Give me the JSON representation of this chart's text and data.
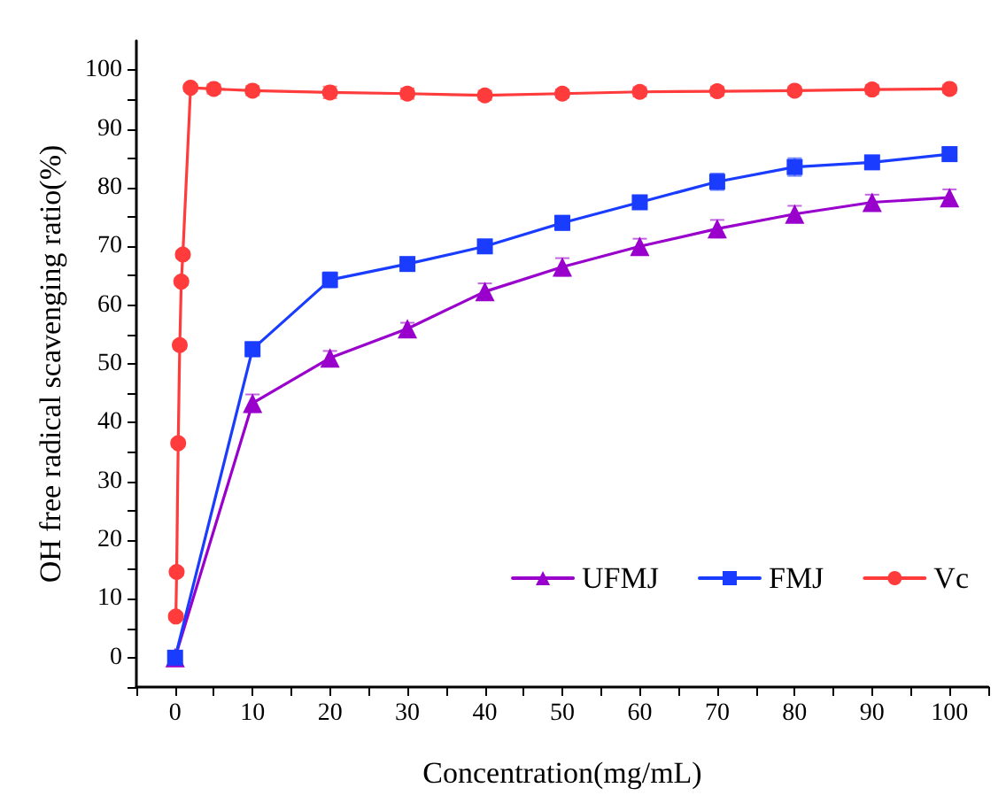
{
  "chart_data": {
    "type": "line",
    "xlabel": "Concentration(mg/mL)",
    "ylabel": "OH free radical scavenging ratio(%)",
    "xlim": [
      -5,
      105
    ],
    "ylim": [
      -5,
      105
    ],
    "xticks": [
      {
        "value": -5,
        "label": null
      },
      0,
      {
        "value": 5,
        "label": null
      },
      10,
      {
        "value": 15,
        "label": null
      },
      20,
      {
        "value": 25,
        "label": null
      },
      30,
      {
        "value": 35,
        "label": null
      },
      40,
      {
        "value": 45,
        "label": null
      },
      50,
      {
        "value": 55,
        "label": null
      },
      60,
      {
        "value": 65,
        "label": null
      },
      70,
      {
        "value": 75,
        "label": null
      },
      80,
      {
        "value": 85,
        "label": null
      },
      90,
      {
        "value": 95,
        "label": null
      },
      100,
      {
        "value": 105,
        "label": null
      }
    ],
    "yticks": [
      {
        "value": -5,
        "label": null
      },
      0,
      {
        "value": 5,
        "label": null
      },
      10,
      {
        "value": 15,
        "label": null
      },
      20,
      {
        "value": 25,
        "label": null
      },
      30,
      {
        "value": 35,
        "label": null
      },
      40,
      {
        "value": 45,
        "label": null
      },
      50,
      {
        "value": 55,
        "label": null
      },
      60,
      {
        "value": 65,
        "label": null
      },
      70,
      {
        "value": 75,
        "label": null
      },
      80,
      {
        "value": 85,
        "label": null
      },
      90,
      {
        "value": 95,
        "label": null
      },
      100
    ],
    "grid": false,
    "legend": "bottom right",
    "line_style": "solid",
    "series": [
      {
        "name": "UFMJ",
        "color": "#9900cc",
        "marker": "triangle",
        "x": [
          0,
          10,
          20,
          30,
          40,
          50,
          60,
          70,
          80,
          90,
          100
        ],
        "values": [
          0,
          43.3,
          51,
          56,
          62.3,
          66.5,
          70,
          73,
          75.5,
          77.5,
          78.3
        ],
        "errors": [
          null,
          1.5,
          1.2,
          1,
          1.4,
          1.5,
          1.3,
          1.5,
          1.4,
          1.3,
          1.4
        ]
      },
      {
        "name": "FMJ",
        "color": "#1a3cff",
        "marker": "square",
        "x": [
          0,
          10,
          20,
          30,
          40,
          50,
          60,
          70,
          80,
          90,
          100
        ],
        "values": [
          0,
          52.5,
          64.3,
          67,
          70,
          74,
          77.5,
          81,
          83.5,
          84.3,
          85.7
        ],
        "errors": [
          null,
          1.2,
          1.3,
          1.1,
          0.9,
          1.2,
          1.1,
          1.4,
          1.5,
          1,
          1.2
        ]
      },
      {
        "name": "Vc",
        "color": "#ff3b3b",
        "marker": "circle",
        "x": [
          0.1,
          0.2,
          0.4,
          0.6,
          0.8,
          1,
          2,
          5,
          10,
          20,
          30,
          40,
          50,
          60,
          70,
          80,
          90,
          100
        ],
        "values": [
          7,
          14.6,
          36.5,
          53.2,
          64,
          68.6,
          97,
          96.8,
          96.5,
          96.2,
          96,
          95.7,
          96,
          96.3,
          96.4,
          96.5,
          96.7,
          96.8
        ],
        "errors": [
          0.6,
          0.6,
          0.6,
          0.6,
          0.6,
          0.6,
          0.6,
          0.8,
          0.8,
          1,
          0.9,
          0.8,
          0.7,
          0.8,
          0.8,
          0.7,
          0.8,
          0.7
        ]
      }
    ]
  }
}
